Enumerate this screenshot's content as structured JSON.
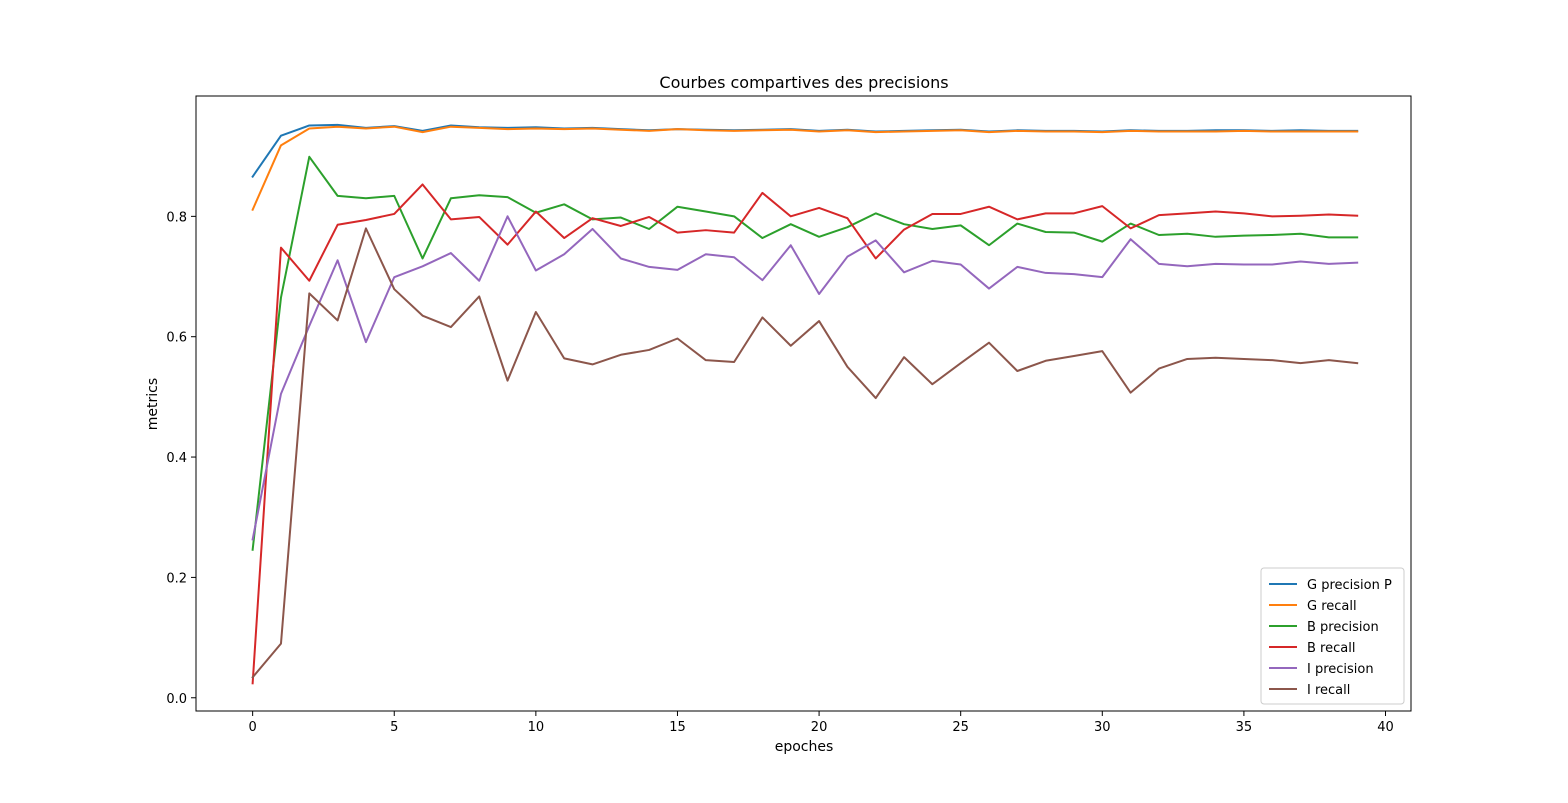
{
  "chart_data": {
    "type": "line",
    "title": "Courbes compartives des precisions",
    "xlabel": "epoches",
    "ylabel": "metrics",
    "xlim": [
      -2,
      40.9
    ],
    "ylim": [
      -0.022,
      1.0
    ],
    "xticks": [
      0,
      5,
      10,
      15,
      20,
      25,
      30,
      35,
      40
    ],
    "xtick_labels": [
      "0",
      "5",
      "10",
      "15",
      "20",
      "25",
      "30",
      "35",
      "40"
    ],
    "yticks": [
      0.0,
      0.2,
      0.4,
      0.6,
      0.8
    ],
    "ytick_labels": [
      "0.0",
      "0.2",
      "0.4",
      "0.6",
      "0.8"
    ],
    "grid": false,
    "legend_position": "bottom-right",
    "x": [
      0,
      1,
      2,
      3,
      4,
      5,
      6,
      7,
      8,
      9,
      10,
      11,
      12,
      13,
      14,
      15,
      16,
      17,
      18,
      19,
      20,
      21,
      22,
      23,
      24,
      25,
      26,
      27,
      28,
      29,
      30,
      31,
      32,
      33,
      34,
      35,
      36,
      37,
      38,
      39
    ],
    "series": [
      {
        "name": "G precision P",
        "color": "#1f77b4",
        "values": [
          0.866,
          0.934,
          0.951,
          0.952,
          0.947,
          0.95,
          0.942,
          0.951,
          0.948,
          0.947,
          0.948,
          0.946,
          0.947,
          0.945,
          0.943,
          0.945,
          0.944,
          0.943,
          0.944,
          0.945,
          0.942,
          0.944,
          0.941,
          0.942,
          0.943,
          0.944,
          0.941,
          0.943,
          0.942,
          0.942,
          0.941,
          0.943,
          0.942,
          0.942,
          0.943,
          0.943,
          0.942,
          0.943,
          0.942,
          0.942
        ]
      },
      {
        "name": "G recall",
        "color": "#ff7f0e",
        "values": [
          0.811,
          0.918,
          0.946,
          0.949,
          0.946,
          0.949,
          0.94,
          0.949,
          0.947,
          0.945,
          0.946,
          0.945,
          0.946,
          0.944,
          0.942,
          0.945,
          0.943,
          0.942,
          0.943,
          0.944,
          0.941,
          0.943,
          0.94,
          0.941,
          0.942,
          0.943,
          0.94,
          0.942,
          0.941,
          0.941,
          0.94,
          0.942,
          0.941,
          0.941,
          0.941,
          0.942,
          0.941,
          0.941,
          0.941,
          0.941
        ]
      },
      {
        "name": "B precision",
        "color": "#2ca02c",
        "values": [
          0.246,
          0.665,
          0.899,
          0.834,
          0.83,
          0.834,
          0.73,
          0.83,
          0.835,
          0.832,
          0.806,
          0.82,
          0.795,
          0.798,
          0.779,
          0.816,
          0.808,
          0.8,
          0.764,
          0.787,
          0.766,
          0.782,
          0.805,
          0.787,
          0.779,
          0.785,
          0.752,
          0.788,
          0.774,
          0.773,
          0.758,
          0.788,
          0.769,
          0.771,
          0.766,
          0.768,
          0.769,
          0.771,
          0.765,
          0.765
        ]
      },
      {
        "name": "B recall",
        "color": "#d62728",
        "values": [
          0.024,
          0.748,
          0.693,
          0.786,
          0.794,
          0.804,
          0.853,
          0.795,
          0.799,
          0.753,
          0.808,
          0.764,
          0.797,
          0.784,
          0.799,
          0.773,
          0.777,
          0.773,
          0.839,
          0.8,
          0.814,
          0.797,
          0.73,
          0.778,
          0.804,
          0.804,
          0.816,
          0.795,
          0.805,
          0.805,
          0.817,
          0.78,
          0.802,
          0.805,
          0.808,
          0.805,
          0.8,
          0.801,
          0.803,
          0.801
        ]
      },
      {
        "name": "I precision",
        "color": "#9467bd",
        "values": [
          0.263,
          0.505,
          0.618,
          0.727,
          0.591,
          0.699,
          0.717,
          0.739,
          0.693,
          0.8,
          0.71,
          0.737,
          0.779,
          0.73,
          0.716,
          0.711,
          0.737,
          0.732,
          0.694,
          0.752,
          0.671,
          0.733,
          0.76,
          0.707,
          0.726,
          0.72,
          0.68,
          0.716,
          0.706,
          0.704,
          0.699,
          0.762,
          0.721,
          0.717,
          0.721,
          0.72,
          0.72,
          0.725,
          0.721,
          0.723
        ]
      },
      {
        "name": "I recall",
        "color": "#8c564b",
        "values": [
          0.034,
          0.09,
          0.672,
          0.627,
          0.78,
          0.679,
          0.635,
          0.616,
          0.667,
          0.527,
          0.641,
          0.564,
          0.554,
          0.57,
          0.578,
          0.597,
          0.561,
          0.558,
          0.632,
          0.585,
          0.626,
          0.55,
          0.498,
          0.566,
          0.521,
          0.556,
          0.59,
          0.543,
          0.56,
          0.568,
          0.576,
          0.507,
          0.547,
          0.563,
          0.565,
          0.563,
          0.561,
          0.556,
          0.561,
          0.556
        ]
      }
    ]
  }
}
